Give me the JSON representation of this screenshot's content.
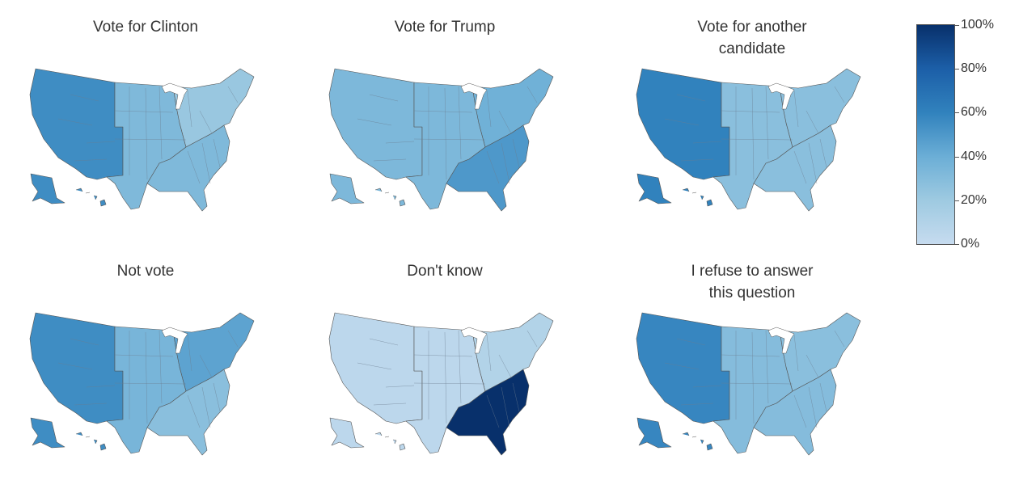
{
  "panels": [
    {
      "title": "Vote for Clinton",
      "west": 0.55,
      "central": 0.32,
      "southeast": 0.32,
      "northeast": 0.22,
      "alaska": 0.55,
      "hawaii": 0.55
    },
    {
      "title": "Vote for Trump",
      "west": 0.33,
      "central": 0.33,
      "southeast": 0.5,
      "northeast": 0.38,
      "alaska": 0.33,
      "hawaii": 0.33
    },
    {
      "title": "Vote for another\ncandidate",
      "west": 0.6,
      "central": 0.28,
      "southeast": 0.28,
      "northeast": 0.28,
      "alaska": 0.6,
      "hawaii": 0.6
    },
    {
      "title": "Not vote",
      "west": 0.55,
      "central": 0.35,
      "southeast": 0.28,
      "northeast": 0.45,
      "alaska": 0.55,
      "hawaii": 0.55
    },
    {
      "title": "Don't know",
      "west": 0.05,
      "central": 0.05,
      "southeast": 1.0,
      "northeast": 0.1,
      "alaska": 0.05,
      "hawaii": 0.05
    },
    {
      "title": "I refuse to answer\nthis question",
      "west": 0.58,
      "central": 0.3,
      "southeast": 0.3,
      "northeast": 0.28,
      "alaska": 0.58,
      "hawaii": 0.58
    }
  ],
  "legend": {
    "ticks": [
      "100%",
      "80%",
      "60%",
      "40%",
      "20%",
      "0%"
    ]
  }
}
